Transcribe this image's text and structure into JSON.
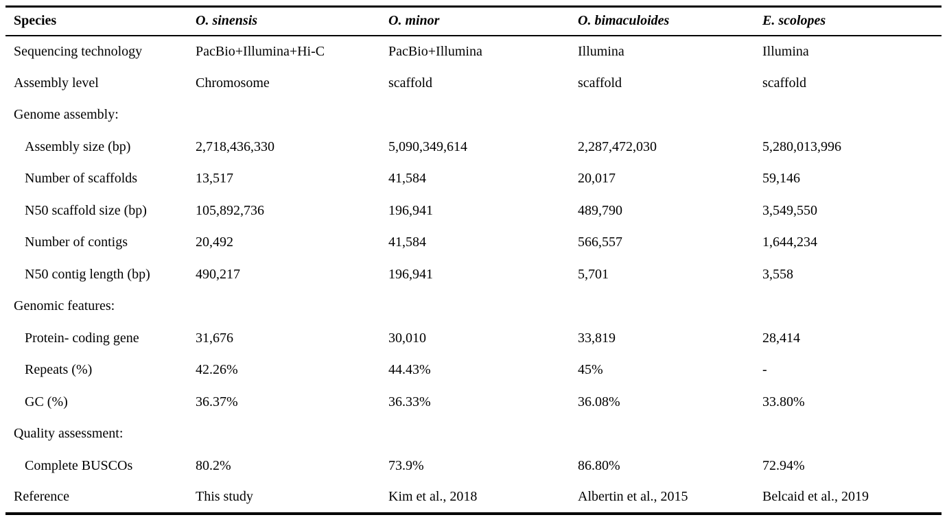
{
  "table": {
    "columns": [
      "Species",
      "O. sinensis",
      "O. minor",
      "O. bimaculoides",
      "E. scolopes"
    ],
    "rows": [
      {
        "label": "Sequencing technology",
        "indent": false,
        "section": false,
        "values": [
          "PacBio+Illumina+Hi-C",
          "PacBio+Illumina",
          "Illumina",
          "Illumina"
        ]
      },
      {
        "label": "Assembly level",
        "indent": false,
        "section": false,
        "values": [
          "Chromosome",
          "scaffold",
          "scaffold",
          "scaffold"
        ]
      },
      {
        "label": "Genome assembly:",
        "indent": false,
        "section": true,
        "values": [
          "",
          "",
          "",
          ""
        ]
      },
      {
        "label": "Assembly size (bp)",
        "indent": true,
        "section": false,
        "values": [
          "2,718,436,330",
          "5,090,349,614",
          "2,287,472,030",
          "5,280,013,996"
        ]
      },
      {
        "label": "Number of scaffolds",
        "indent": true,
        "section": false,
        "values": [
          "13,517",
          "41,584",
          "20,017",
          "59,146"
        ]
      },
      {
        "label": "N50 scaffold size (bp)",
        "indent": true,
        "section": false,
        "values": [
          "105,892,736",
          "196,941",
          "489,790",
          "3,549,550"
        ]
      },
      {
        "label": "Number of contigs",
        "indent": true,
        "section": false,
        "values": [
          "20,492",
          "41,584",
          "566,557",
          "1,644,234"
        ]
      },
      {
        "label": "N50 contig length (bp)",
        "indent": true,
        "section": false,
        "values": [
          "490,217",
          "196,941",
          "5,701",
          "3,558"
        ]
      },
      {
        "label": "Genomic features:",
        "indent": false,
        "section": true,
        "values": [
          "",
          "",
          "",
          ""
        ]
      },
      {
        "label": "Protein- coding gene",
        "indent": true,
        "section": false,
        "values": [
          "31,676",
          "30,010",
          "33,819",
          "28,414"
        ]
      },
      {
        "label": "Repeats (%)",
        "indent": true,
        "section": false,
        "values": [
          "42.26%",
          "44.43%",
          "45%",
          "-"
        ]
      },
      {
        "label": "GC (%)",
        "indent": true,
        "section": false,
        "values": [
          "36.37%",
          "36.33%",
          "36.08%",
          "33.80%"
        ]
      },
      {
        "label": "Quality assessment:",
        "indent": false,
        "section": true,
        "values": [
          "",
          "",
          "",
          ""
        ]
      },
      {
        "label": "Complete BUSCOs",
        "indent": true,
        "section": false,
        "values": [
          "80.2%",
          "73.9%",
          "86.80%",
          "72.94%"
        ]
      },
      {
        "label": "Reference",
        "indent": false,
        "section": false,
        "values": [
          "This study",
          "Kim et al., 2018",
          "Albertin et al., 2015",
          "Belcaid et al., 2019"
        ]
      }
    ]
  },
  "colors": {
    "text": "#000000",
    "border": "#000000",
    "background": "#ffffff"
  }
}
